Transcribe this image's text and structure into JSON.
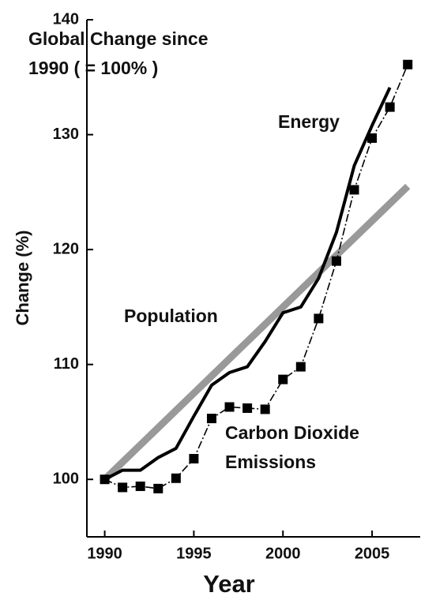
{
  "chart_data": {
    "type": "line",
    "title": "Global Change since 1990 ( = 100% )",
    "x_label": "Year",
    "y_label": "Change (%)",
    "x": [
      1990,
      1991,
      1992,
      1993,
      1994,
      1995,
      1996,
      1997,
      1998,
      1999,
      2000,
      2001,
      2002,
      2003,
      2004,
      2005,
      2006,
      2007
    ],
    "series": [
      {
        "name": "Population",
        "color": "#999999",
        "values": [
          100,
          101.5,
          103.0,
          104.5,
          106.0,
          107.5,
          109.0,
          110.5,
          112.0,
          113.5,
          115.0,
          116.5,
          118.0,
          119.5,
          121.0,
          122.5,
          124.0,
          125.5
        ]
      },
      {
        "name": "Energy",
        "color": "#000000",
        "values": [
          100,
          100.8,
          100.8,
          101.9,
          102.7,
          105.5,
          108.2,
          109.3,
          109.8,
          112.0,
          114.5,
          115.0,
          117.5,
          121.5,
          127.3,
          130.8,
          134.1,
          null
        ]
      },
      {
        "name": "Carbon Dioxide Emissions",
        "color": "#000000",
        "values": [
          100,
          99.3,
          99.4,
          99.2,
          100.1,
          101.8,
          105.3,
          106.3,
          106.2,
          106.1,
          108.7,
          109.8,
          114.0,
          119.0,
          125.2,
          129.7,
          132.4,
          136.1
        ]
      }
    ],
    "xlim": [
      1989,
      2007.7
    ],
    "xticks": [
      1990,
      1995,
      2000,
      2005
    ],
    "ylim": [
      95,
      140
    ],
    "yticks": [
      100,
      110,
      120,
      130,
      140
    ]
  }
}
